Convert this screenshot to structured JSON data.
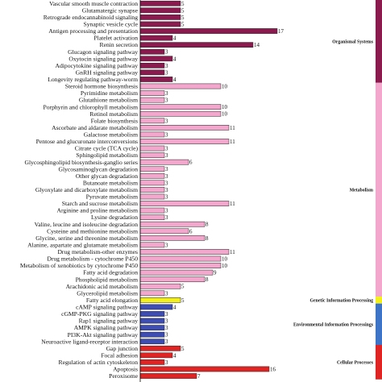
{
  "chart_data": {
    "type": "bar",
    "orientation": "horizontal",
    "categories": [
      "Vascular smooth muscle contraction",
      "Glutamatergic synapse",
      "Retrograde endocannabinoid signaling",
      "Synaptic vesicle cycle",
      "Antigen processing and presentation",
      "Platelet activation",
      "Renin secretion",
      "Glucagon signaling pathway",
      "Oxytocin signaling pathway",
      "Adipocytokine signaling pathway",
      "GnRH signaling pathway",
      "Longevity regulating pathway-worm",
      "Steroid hormone biosynthesis",
      "Pyrimidine metabolism",
      "Glutathione metabolism",
      "Porphyrin and chlorophyll metabolism",
      "Retinol metabolism",
      "Folate biosynthesis",
      "Ascorbate and aldarate metabolism",
      "Galactose metabolism",
      "Pentose and glucuronate interconversions",
      "Citrate cycle (TCA cycle)",
      "Sphingolipid metabolism",
      "Glycosphingolipid biosynthesis-ganglio series",
      "Glycosaminoglycan degradation",
      "Other glycan degradation",
      "Butanoate metabolism",
      "Glyoxylate and dicarboxylate metabolism",
      "Pyruvate metabolism",
      "Starch and sucrose metabolism",
      "Arginine and proline metabolism",
      "Lysine degradation",
      "Valine, leucine and isoleucine degradation",
      "Cysteine and methionine metabolism",
      "Glycine, serine and threonine metabolism",
      "Alanine, aspartate and glutamate metabolism",
      "Drug metabolism-other enzymes",
      "Drug metabolism - cytochrome P450",
      "Metabolism of xenobiotics by cytochrome P450",
      "Fatty acid degradation",
      "Phospholipid metabolism",
      "Arachidonic acid metabolism",
      "Glycerolipid metabolism",
      "Fatty acid elongation",
      "cAMP signaling pathway",
      "cGMP-PKG signaling pathway",
      "Rap1 signaling pathway",
      "AMPK signaling pathway",
      "PI3K-Akt signaling pathway",
      "Neuroactive ligand-receptor interaction",
      "Gap junction",
      "Focal adhesion",
      "Regulation of actin cytoskeleton",
      "Apoptosis",
      "Peroxisome"
    ],
    "values": [
      5,
      5,
      5,
      5,
      17,
      4,
      14,
      3,
      4,
      3,
      3,
      4,
      10,
      3,
      3,
      10,
      10,
      3,
      11,
      3,
      11,
      3,
      3,
      6,
      3,
      3,
      3,
      3,
      3,
      11,
      3,
      3,
      8,
      6,
      8,
      3,
      11,
      10,
      10,
      9,
      8,
      5,
      3,
      5,
      4,
      3,
      3,
      3,
      3,
      3,
      5,
      4,
      3,
      16,
      7
    ],
    "value_labels": [
      "5",
      "5",
      "5",
      "5",
      "17",
      "4",
      "14",
      "3",
      "4",
      "3",
      "3",
      "4",
      "10",
      "3",
      "3",
      "10",
      "10",
      "3",
      "11",
      "3",
      "11",
      "3",
      "3",
      "6",
      "3",
      "3",
      "3",
      "3",
      "3",
      "11",
      "3",
      "3",
      "8",
      "6",
      "8",
      "3",
      "11",
      "10",
      "10",
      "9",
      "8",
      "5",
      "3",
      "5",
      "4",
      "3",
      "3",
      "3",
      "3",
      "3",
      "5",
      "4",
      "3",
      "16",
      "7"
    ],
    "groups": [
      {
        "name": "Organismal Systems",
        "start": 0,
        "end": 11,
        "bar_color": "#8b1a4f",
        "side_color": "#8b1a4f"
      },
      {
        "name": "Metabolism",
        "start": 12,
        "end": 42,
        "bar_color": "#f4a7cc",
        "side_color": "#f4a7cc"
      },
      {
        "name": "Genetic Information Processing",
        "start": 43,
        "end": 43,
        "bar_color": "#f2ef1b",
        "side_color": "#f2ef1b"
      },
      {
        "name": "Environmental Information Processings",
        "start": 44,
        "end": 49,
        "bar_color": "#3d4db2",
        "side_color": "#3d74c8"
      },
      {
        "name": "Cellular Processes",
        "start": 50,
        "end": 54,
        "bar_color": "#e02424",
        "side_color": "#e02424"
      }
    ],
    "xlim": [
      0,
      18
    ],
    "title": "",
    "xlabel": "",
    "ylabel": ""
  }
}
